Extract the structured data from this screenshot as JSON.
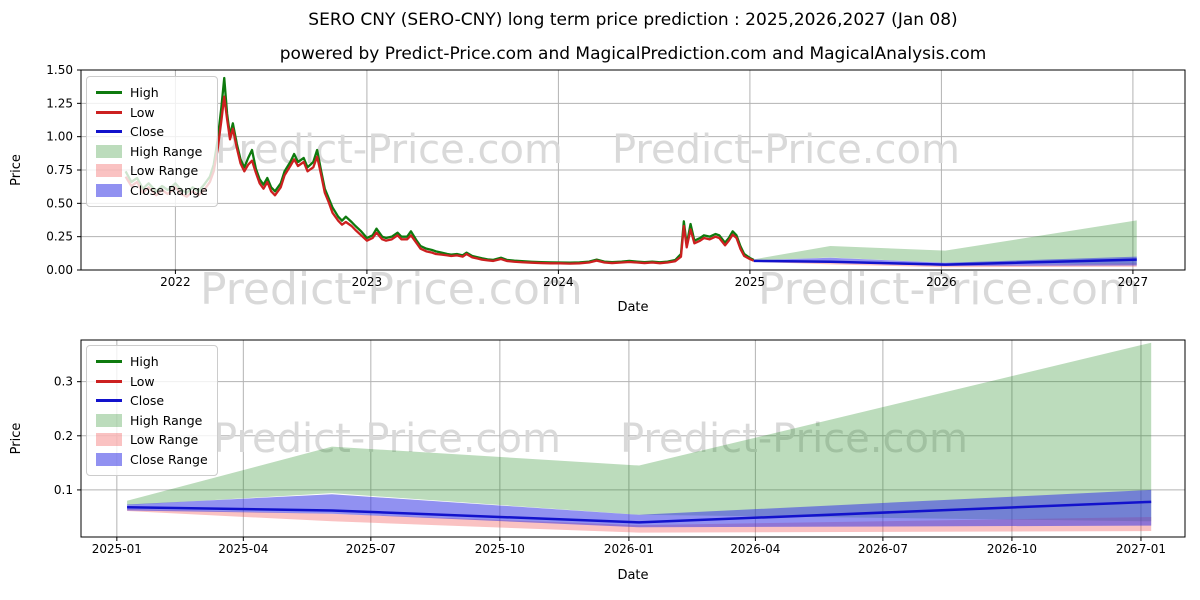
{
  "title": "SERO CNY (SERO-CNY) long term price prediction : 2025,2026,2027 (Jan 08)",
  "subtitle": "powered by Predict-Price.com and MagicalPrediction.com and MagicalAnalysis.com",
  "watermark": {
    "text": "Predict-Price.com",
    "color": "#d9d9d9"
  },
  "colors": {
    "high_line": "#0e7a0e",
    "low_line": "#cc2020",
    "close_line": "#1212cc",
    "high_range_fill": "rgba(34,139,34,0.30)",
    "low_range_fill": "rgba(240,70,70,0.33)",
    "close_range_fill": "rgba(55,55,230,0.55)",
    "grid": "#b3b3b3",
    "spine": "#000000",
    "tick_text": "#000000"
  },
  "legend": {
    "items": [
      {
        "label": "High",
        "swatch": "line",
        "color_key": "high_line"
      },
      {
        "label": "Low",
        "swatch": "line",
        "color_key": "low_line"
      },
      {
        "label": "Close",
        "swatch": "line",
        "color_key": "close_line"
      },
      {
        "label": "High Range",
        "swatch": "patch",
        "color_key": "high_range_fill"
      },
      {
        "label": "Low Range",
        "swatch": "patch",
        "color_key": "low_range_fill"
      },
      {
        "label": "Close Range",
        "swatch": "patch",
        "color_key": "close_range_fill"
      }
    ]
  },
  "chart_data": [
    {
      "type": "line",
      "name": "long-term-history-and-forecast",
      "xlabel": "Date",
      "ylabel": "Price",
      "xlim": [
        2021.507,
        2027.272
      ],
      "ylim": [
        0.0,
        1.5
      ],
      "yticks": [
        {
          "v": 0.0,
          "label": "0.00"
        },
        {
          "v": 0.25,
          "label": "0.25"
        },
        {
          "v": 0.5,
          "label": "0.50"
        },
        {
          "v": 0.75,
          "label": "0.75"
        },
        {
          "v": 1.0,
          "label": "1.00"
        },
        {
          "v": 1.25,
          "label": "1.25"
        },
        {
          "v": 1.5,
          "label": "1.50"
        }
      ],
      "xticks": [
        {
          "v": 2022,
          "label": "2022"
        },
        {
          "v": 2023,
          "label": "2023"
        },
        {
          "v": 2024,
          "label": "2024"
        },
        {
          "v": 2025,
          "label": "2025"
        },
        {
          "v": 2026,
          "label": "2026"
        },
        {
          "v": 2027,
          "label": "2027"
        }
      ],
      "history_points_format": [
        "year",
        "low",
        "high"
      ],
      "history": [
        [
          2021.74,
          0.7,
          0.74
        ],
        [
          2021.77,
          0.63,
          0.66
        ],
        [
          2021.8,
          0.66,
          0.69
        ],
        [
          2021.83,
          0.58,
          0.61
        ],
        [
          2021.86,
          0.62,
          0.65
        ],
        [
          2021.9,
          0.56,
          0.59
        ],
        [
          2021.93,
          0.6,
          0.63
        ],
        [
          2021.96,
          0.57,
          0.6
        ],
        [
          2022.0,
          0.62,
          0.65
        ],
        [
          2022.03,
          0.57,
          0.6
        ],
        [
          2022.06,
          0.55,
          0.58
        ],
        [
          2022.09,
          0.59,
          0.62
        ],
        [
          2022.12,
          0.56,
          0.59
        ],
        [
          2022.15,
          0.6,
          0.64
        ],
        [
          2022.18,
          0.66,
          0.7
        ],
        [
          2022.2,
          0.74,
          0.79
        ],
        [
          2022.22,
          0.9,
          0.97
        ],
        [
          2022.24,
          1.12,
          1.22
        ],
        [
          2022.255,
          1.3,
          1.44
        ],
        [
          2022.27,
          1.13,
          1.17
        ],
        [
          2022.285,
          0.98,
          1.01
        ],
        [
          2022.3,
          1.06,
          1.1
        ],
        [
          2022.32,
          0.92,
          0.95
        ],
        [
          2022.34,
          0.8,
          0.83
        ],
        [
          2022.36,
          0.74,
          0.77
        ],
        [
          2022.38,
          0.79,
          0.84
        ],
        [
          2022.4,
          0.82,
          0.9
        ],
        [
          2022.42,
          0.73,
          0.76
        ],
        [
          2022.44,
          0.65,
          0.68
        ],
        [
          2022.46,
          0.61,
          0.64
        ],
        [
          2022.48,
          0.66,
          0.69
        ],
        [
          2022.5,
          0.59,
          0.62
        ],
        [
          2022.52,
          0.56,
          0.59
        ],
        [
          2022.55,
          0.62,
          0.65
        ],
        [
          2022.57,
          0.71,
          0.74
        ],
        [
          2022.6,
          0.78,
          0.81
        ],
        [
          2022.62,
          0.83,
          0.87
        ],
        [
          2022.64,
          0.78,
          0.81
        ],
        [
          2022.67,
          0.81,
          0.84
        ],
        [
          2022.69,
          0.74,
          0.77
        ],
        [
          2022.72,
          0.77,
          0.81
        ],
        [
          2022.74,
          0.85,
          0.9
        ],
        [
          2022.76,
          0.72,
          0.75
        ],
        [
          2022.78,
          0.58,
          0.61
        ],
        [
          2022.8,
          0.51,
          0.54
        ],
        [
          2022.82,
          0.43,
          0.47
        ],
        [
          2022.85,
          0.37,
          0.4
        ],
        [
          2022.87,
          0.34,
          0.37
        ],
        [
          2022.89,
          0.36,
          0.4
        ],
        [
          2022.92,
          0.33,
          0.36
        ],
        [
          2022.94,
          0.3,
          0.33
        ],
        [
          2022.97,
          0.26,
          0.29
        ],
        [
          2023.0,
          0.22,
          0.24
        ],
        [
          2023.03,
          0.24,
          0.26
        ],
        [
          2023.05,
          0.28,
          0.31
        ],
        [
          2023.08,
          0.23,
          0.25
        ],
        [
          2023.1,
          0.22,
          0.24
        ],
        [
          2023.13,
          0.23,
          0.25
        ],
        [
          2023.16,
          0.26,
          0.28
        ],
        [
          2023.18,
          0.23,
          0.25
        ],
        [
          2023.21,
          0.23,
          0.25
        ],
        [
          2023.23,
          0.26,
          0.29
        ],
        [
          2023.26,
          0.2,
          0.22
        ],
        [
          2023.28,
          0.16,
          0.18
        ],
        [
          2023.31,
          0.14,
          0.16
        ],
        [
          2023.34,
          0.13,
          0.15
        ],
        [
          2023.36,
          0.12,
          0.14
        ],
        [
          2023.39,
          0.115,
          0.13
        ],
        [
          2023.42,
          0.11,
          0.12
        ],
        [
          2023.44,
          0.105,
          0.115
        ],
        [
          2023.47,
          0.11,
          0.12
        ],
        [
          2023.5,
          0.1,
          0.11
        ],
        [
          2023.52,
          0.12,
          0.13
        ],
        [
          2023.55,
          0.095,
          0.105
        ],
        [
          2023.58,
          0.085,
          0.095
        ],
        [
          2023.6,
          0.078,
          0.088
        ],
        [
          2023.63,
          0.072,
          0.08
        ],
        [
          2023.66,
          0.068,
          0.076
        ],
        [
          2023.7,
          0.082,
          0.092
        ],
        [
          2023.73,
          0.068,
          0.076
        ],
        [
          2023.77,
          0.062,
          0.07
        ],
        [
          2023.81,
          0.058,
          0.066
        ],
        [
          2023.86,
          0.055,
          0.062
        ],
        [
          2023.91,
          0.052,
          0.059
        ],
        [
          2023.96,
          0.05,
          0.057
        ],
        [
          2024.01,
          0.05,
          0.056
        ],
        [
          2024.06,
          0.048,
          0.055
        ],
        [
          2024.11,
          0.05,
          0.057
        ],
        [
          2024.16,
          0.056,
          0.063
        ],
        [
          2024.2,
          0.07,
          0.078
        ],
        [
          2024.24,
          0.056,
          0.063
        ],
        [
          2024.28,
          0.052,
          0.059
        ],
        [
          2024.33,
          0.056,
          0.063
        ],
        [
          2024.37,
          0.06,
          0.068
        ],
        [
          2024.41,
          0.056,
          0.063
        ],
        [
          2024.45,
          0.052,
          0.059
        ],
        [
          2024.49,
          0.056,
          0.063
        ],
        [
          2024.53,
          0.051,
          0.058
        ],
        [
          2024.57,
          0.056,
          0.063
        ],
        [
          2024.61,
          0.066,
          0.075
        ],
        [
          2024.64,
          0.1,
          0.12
        ],
        [
          2024.655,
          0.33,
          0.365
        ],
        [
          2024.67,
          0.17,
          0.19
        ],
        [
          2024.69,
          0.305,
          0.345
        ],
        [
          2024.71,
          0.2,
          0.22
        ],
        [
          2024.74,
          0.22,
          0.24
        ],
        [
          2024.76,
          0.24,
          0.26
        ],
        [
          2024.79,
          0.23,
          0.25
        ],
        [
          2024.82,
          0.25,
          0.27
        ],
        [
          2024.84,
          0.24,
          0.26
        ],
        [
          2024.87,
          0.185,
          0.205
        ],
        [
          2024.89,
          0.22,
          0.24
        ],
        [
          2024.91,
          0.265,
          0.29
        ],
        [
          2024.93,
          0.24,
          0.26
        ],
        [
          2024.95,
          0.16,
          0.18
        ],
        [
          2024.97,
          0.105,
          0.12
        ],
        [
          2025.0,
          0.082,
          0.09
        ],
        [
          2025.02,
          0.07,
          0.076
        ]
      ],
      "forecast": {
        "x": [
          2025.02,
          2025.42,
          2026.02,
          2027.02
        ],
        "close": [
          0.068,
          0.062,
          0.04,
          0.078
        ],
        "high_range": {
          "top": [
            0.08,
            0.18,
            0.145,
            0.372
          ],
          "bottom": [
            0.072,
            0.094,
            0.054,
            0.042
          ]
        },
        "low_range": {
          "top": [
            0.065,
            0.056,
            0.035,
            0.05
          ],
          "bottom": [
            0.061,
            0.042,
            0.021,
            0.024
          ]
        },
        "close_range": {
          "top": [
            0.073,
            0.092,
            0.054,
            0.1
          ],
          "bottom": [
            0.062,
            0.056,
            0.031,
            0.034
          ]
        }
      }
    },
    {
      "type": "area",
      "name": "forecast-detail-2025-2027",
      "xlabel": "Date",
      "ylabel": "Price",
      "xlim": [
        2024.93,
        2027.086
      ],
      "ylim": [
        0.013,
        0.377
      ],
      "yticks": [
        {
          "v": 0.1,
          "label": "0.1"
        },
        {
          "v": 0.2,
          "label": "0.2"
        },
        {
          "v": 0.3,
          "label": "0.3"
        }
      ],
      "xticks": [
        {
          "v": 2025.0,
          "label": "2025-01"
        },
        {
          "v": 2025.247,
          "label": "2025-04"
        },
        {
          "v": 2025.496,
          "label": "2025-07"
        },
        {
          "v": 2025.748,
          "label": "2025-10"
        },
        {
          "v": 2026.0,
          "label": "2026-01"
        },
        {
          "v": 2026.247,
          "label": "2026-04"
        },
        {
          "v": 2026.496,
          "label": "2026-07"
        },
        {
          "v": 2026.748,
          "label": "2026-10"
        },
        {
          "v": 2027.0,
          "label": "2027-01"
        }
      ],
      "forecast": {
        "x": [
          2025.02,
          2025.42,
          2026.02,
          2027.02
        ],
        "close": [
          0.068,
          0.062,
          0.04,
          0.078
        ],
        "high_range": {
          "top": [
            0.08,
            0.18,
            0.145,
            0.372
          ],
          "bottom": [
            0.072,
            0.094,
            0.054,
            0.042
          ]
        },
        "low_range": {
          "top": [
            0.065,
            0.056,
            0.035,
            0.05
          ],
          "bottom": [
            0.061,
            0.042,
            0.021,
            0.024
          ]
        },
        "close_range": {
          "top": [
            0.073,
            0.092,
            0.054,
            0.1
          ],
          "bottom": [
            0.062,
            0.056,
            0.031,
            0.034
          ]
        }
      }
    }
  ]
}
